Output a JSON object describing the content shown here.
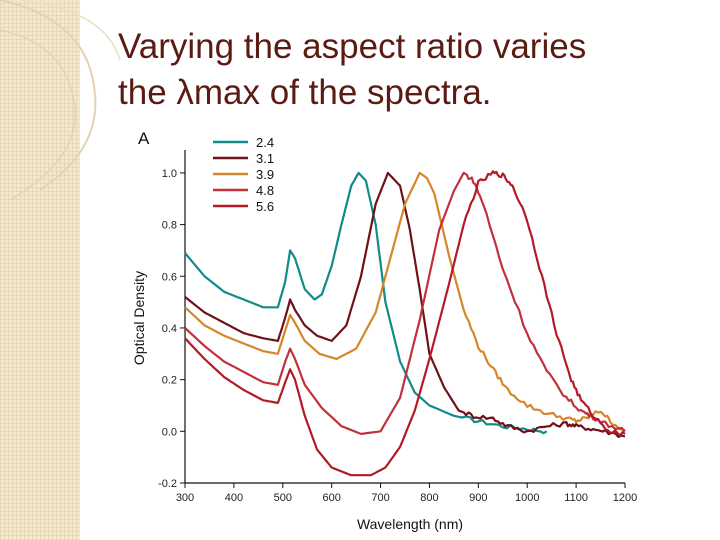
{
  "slide": {
    "title_line1": "Varying the aspect ratio varies",
    "title_line2": "the λmax of the spectra."
  },
  "chart_data": {
    "type": "line",
    "panel_label": "A",
    "title": "",
    "xlabel": "Wavelength (nm)",
    "ylabel": "Optical Density",
    "xlim": [
      300,
      1200
    ],
    "ylim": [
      -0.2,
      1.05
    ],
    "xticks": [
      300,
      400,
      500,
      600,
      700,
      800,
      900,
      1000,
      1100,
      1200
    ],
    "yticks": [
      "-0.2",
      "0.0",
      "0.2",
      "0.4",
      "0.6",
      "0.8",
      "1.0"
    ],
    "legend_position": "top-left",
    "series": [
      {
        "name": "2.4",
        "color": "#138a8a",
        "x": [
          300,
          340,
          380,
          420,
          460,
          490,
          505,
          515,
          525,
          545,
          565,
          580,
          600,
          620,
          640,
          655,
          670,
          690,
          710,
          740,
          770,
          800,
          850,
          900,
          950,
          1000,
          1040
        ],
        "y": [
          0.69,
          0.6,
          0.54,
          0.51,
          0.48,
          0.48,
          0.58,
          0.7,
          0.67,
          0.55,
          0.51,
          0.53,
          0.64,
          0.8,
          0.95,
          1.0,
          0.97,
          0.8,
          0.5,
          0.27,
          0.15,
          0.1,
          0.06,
          0.04,
          0.02,
          0.01,
          0.0
        ]
      },
      {
        "name": "3.1",
        "color": "#6e1218",
        "x": [
          300,
          340,
          380,
          420,
          460,
          490,
          505,
          515,
          525,
          545,
          570,
          600,
          630,
          660,
          690,
          715,
          740,
          760,
          780,
          800,
          830,
          860,
          890,
          930,
          960,
          1000,
          1040,
          1080,
          1100,
          1130,
          1160,
          1200
        ],
        "y": [
          0.52,
          0.46,
          0.42,
          0.38,
          0.36,
          0.35,
          0.44,
          0.51,
          0.47,
          0.41,
          0.37,
          0.35,
          0.41,
          0.6,
          0.88,
          1.0,
          0.95,
          0.78,
          0.55,
          0.3,
          0.17,
          0.08,
          0.06,
          0.05,
          0.02,
          0.0,
          0.02,
          0.03,
          0.02,
          0.01,
          0.0,
          -0.02
        ]
      },
      {
        "name": "3.9",
        "color": "#d6862a",
        "x": [
          300,
          340,
          380,
          420,
          460,
          490,
          505,
          515,
          525,
          545,
          575,
          610,
          650,
          690,
          720,
          750,
          780,
          795,
          810,
          840,
          870,
          900,
          930,
          960,
          1000,
          1040,
          1080,
          1100,
          1120,
          1150,
          1170,
          1200
        ],
        "y": [
          0.48,
          0.41,
          0.37,
          0.34,
          0.31,
          0.3,
          0.39,
          0.45,
          0.42,
          0.35,
          0.3,
          0.28,
          0.32,
          0.46,
          0.67,
          0.88,
          1.0,
          0.98,
          0.92,
          0.68,
          0.47,
          0.33,
          0.24,
          0.16,
          0.1,
          0.07,
          0.05,
          0.04,
          0.05,
          0.08,
          0.04,
          0.0
        ]
      },
      {
        "name": "4.8",
        "color": "#c2313b",
        "x": [
          300,
          340,
          380,
          420,
          460,
          490,
          505,
          515,
          525,
          545,
          580,
          620,
          660,
          700,
          740,
          780,
          820,
          850,
          870,
          890,
          910,
          950,
          1000,
          1040,
          1080,
          1110,
          1130,
          1160,
          1200
        ],
        "y": [
          0.4,
          0.33,
          0.27,
          0.23,
          0.19,
          0.18,
          0.27,
          0.32,
          0.28,
          0.18,
          0.09,
          0.02,
          -0.01,
          0.0,
          0.13,
          0.43,
          0.78,
          0.93,
          1.0,
          0.97,
          0.88,
          0.63,
          0.38,
          0.23,
          0.13,
          0.08,
          0.06,
          0.03,
          0.0
        ]
      },
      {
        "name": "5.6",
        "color": "#b31a28",
        "x": [
          300,
          340,
          380,
          420,
          460,
          490,
          505,
          515,
          525,
          545,
          570,
          600,
          640,
          680,
          710,
          740,
          770,
          800,
          840,
          870,
          900,
          930,
          950,
          970,
          1000,
          1030,
          1060,
          1090,
          1110,
          1140,
          1170,
          1200
        ],
        "y": [
          0.36,
          0.28,
          0.21,
          0.16,
          0.12,
          0.11,
          0.19,
          0.24,
          0.2,
          0.06,
          -0.07,
          -0.14,
          -0.17,
          -0.17,
          -0.14,
          -0.06,
          0.08,
          0.28,
          0.57,
          0.8,
          0.96,
          1.0,
          0.99,
          0.95,
          0.82,
          0.6,
          0.38,
          0.2,
          0.12,
          0.05,
          0.0,
          -0.01
        ]
      }
    ]
  }
}
